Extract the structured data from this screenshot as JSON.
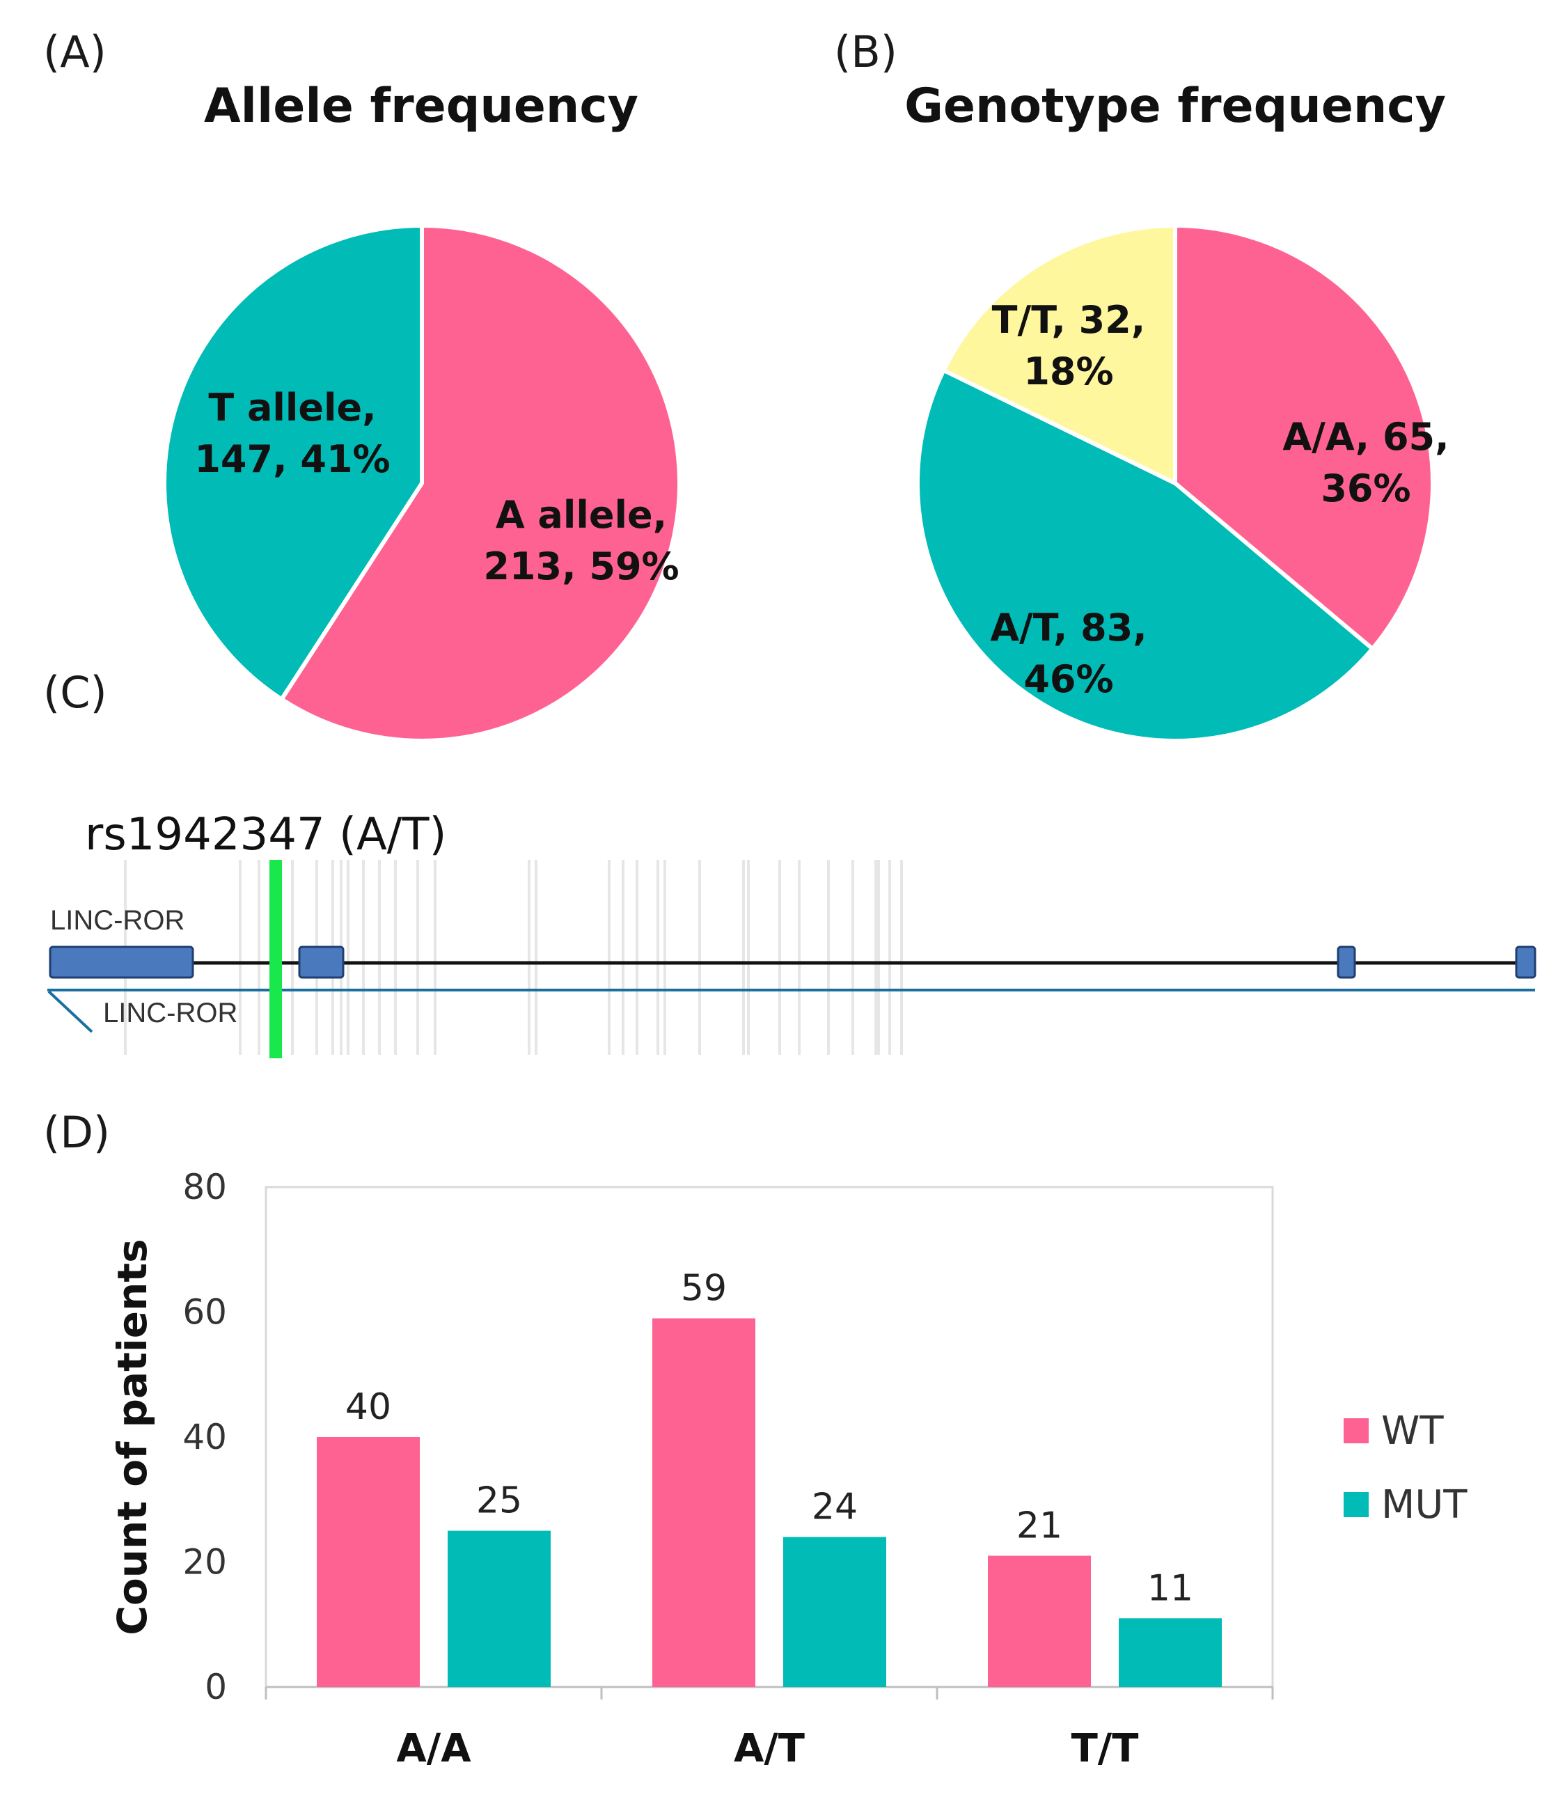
{
  "panel_labels": {
    "a": "(A)",
    "b": "(B)",
    "c": "(C)",
    "d": "(D)"
  },
  "colors": {
    "pink": "#FE6292",
    "teal": "#00BBB6",
    "yellow": "#FFF79E",
    "green": "#19E84C",
    "exon": "#4B79BE",
    "line": "#111111",
    "strand": "#1B6FA0"
  },
  "track": {
    "snp_label": "rs1942347 (A/T)",
    "gene_upper": "LINC-ROR",
    "gene_lower": "LINC-ROR"
  },
  "chart_data": [
    {
      "type": "pie",
      "title": "Allele frequency",
      "slices": [
        {
          "label_line1": "A allele,",
          "label_line2": "213, 59%",
          "value": 213,
          "percent": 59,
          "color": "#FE6292"
        },
        {
          "label_line1": "T allele,",
          "label_line2": "147, 41%",
          "value": 147,
          "percent": 41,
          "color": "#00BBB6"
        }
      ]
    },
    {
      "type": "pie",
      "title": "Genotype frequency",
      "slices": [
        {
          "label_line1": "A/A, 65,",
          "label_line2": "36%",
          "value": 65,
          "percent": 36,
          "color": "#FE6292"
        },
        {
          "label_line1": "A/T, 83,",
          "label_line2": "46%",
          "value": 83,
          "percent": 46,
          "color": "#00BBB6"
        },
        {
          "label_line1": "T/T, 32,",
          "label_line2": "18%",
          "value": 32,
          "percent": 18,
          "color": "#FFF79E"
        }
      ]
    },
    {
      "type": "bar",
      "categories": [
        "A/A",
        "A/T",
        "T/T"
      ],
      "series": [
        {
          "name": "WT",
          "values": [
            40,
            59,
            21
          ],
          "color": "#FE6292"
        },
        {
          "name": "MUT",
          "values": [
            25,
            24,
            11
          ],
          "color": "#00BBB6"
        }
      ],
      "ylabel": "Count of patients",
      "ylim": [
        0,
        80
      ],
      "yticks": [
        "0",
        "20",
        "40",
        "60",
        "80"
      ],
      "legend": "right"
    }
  ]
}
